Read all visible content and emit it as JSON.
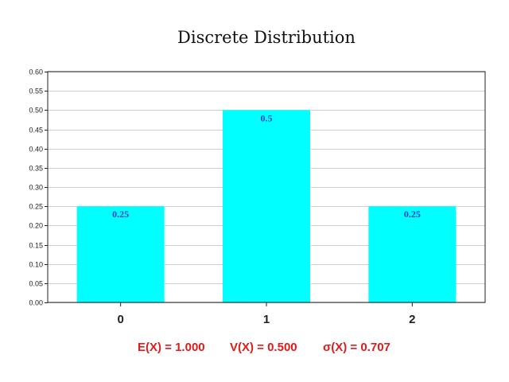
{
  "chart_data": {
    "type": "bar",
    "title": "Discrete Distribution",
    "categories": [
      "0",
      "1",
      "2"
    ],
    "values": [
      0.25,
      0.5,
      0.25
    ],
    "data_labels": [
      "0.25",
      "0.5",
      "0.25"
    ],
    "ylim": [
      0,
      0.6
    ],
    "yticks": [
      "0.00",
      "0.05",
      "0.10",
      "0.15",
      "0.20",
      "0.25",
      "0.30",
      "0.35",
      "0.40",
      "0.45",
      "0.50",
      "0.55",
      "0.60"
    ],
    "grid": true,
    "bar_color": "#00ffff",
    "label_color": "#1f3bd6"
  },
  "stats": {
    "expectation": "E(X) = 1.000",
    "variance": "V(X) = 0.500",
    "stddev": "σ(X) = 0.707",
    "color": "#e01b1b"
  }
}
